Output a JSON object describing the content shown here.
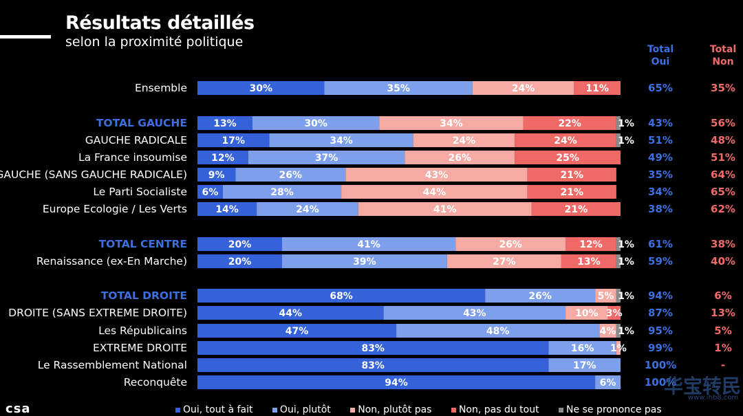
{
  "header": {
    "title": "Résultats détaillés",
    "subtitle": "selon la proximité politique",
    "col_oui": "Total\nOui",
    "col_non": "Total\nNon"
  },
  "colors": {
    "oui_tout_a_fait": "#3562d9",
    "oui_plutot": "#7ea0ec",
    "non_plutot_pas": "#f5aaa3",
    "non_pas_du_tout": "#ef6a67",
    "nsp": "#8a8a8a",
    "highlight_label": "#3d6fe0",
    "total_oui": "#3d6fe0",
    "total_non": "#f06a6a"
  },
  "chart_data": {
    "type": "bar",
    "orientation": "horizontal",
    "stacked": true,
    "title": "Résultats détaillés",
    "subtitle": "selon la proximité politique",
    "series_names": [
      "Oui, tout à fait",
      "Oui, plutôt",
      "Non, plutôt pas",
      "Non, pas du tout",
      "Ne se prononce pas"
    ],
    "rows": [
      {
        "label": "Ensemble",
        "highlight": false,
        "values": [
          30,
          35,
          24,
          11,
          0
        ],
        "labels": [
          "30%",
          "35%",
          "24%",
          "11%",
          ""
        ],
        "total_oui": "65%",
        "total_non": "35%"
      },
      {
        "label": "TOTAL GAUCHE",
        "highlight": true,
        "values": [
          13,
          30,
          34,
          22,
          1
        ],
        "labels": [
          "13%",
          "30%",
          "34%",
          "22%",
          "1%"
        ],
        "total_oui": "43%",
        "total_non": "56%"
      },
      {
        "label": "GAUCHE RADICALE",
        "highlight": false,
        "values": [
          17,
          34,
          24,
          24,
          1
        ],
        "labels": [
          "17%",
          "34%",
          "24%",
          "24%",
          "1%"
        ],
        "total_oui": "51%",
        "total_non": "48%"
      },
      {
        "label": "La France insoumise",
        "highlight": false,
        "values": [
          12,
          37,
          26,
          25,
          0
        ],
        "labels": [
          "12%",
          "37%",
          "26%",
          "25%",
          ""
        ],
        "total_oui": "49%",
        "total_non": "51%"
      },
      {
        "label": "GAUCHE (SANS GAUCHE RADICALE)",
        "highlight": false,
        "values": [
          9,
          26,
          43,
          21,
          0
        ],
        "labels": [
          "9%",
          "26%",
          "43%",
          "21%",
          ""
        ],
        "total_oui": "35%",
        "total_non": "64%"
      },
      {
        "label": "Le Parti Socialiste",
        "highlight": false,
        "values": [
          6,
          28,
          44,
          21,
          0
        ],
        "labels": [
          "6%",
          "28%",
          "44%",
          "21%",
          ""
        ],
        "total_oui": "34%",
        "total_non": "65%"
      },
      {
        "label": "Europe Ecologie / Les Verts",
        "highlight": false,
        "values": [
          14,
          24,
          41,
          21,
          0
        ],
        "labels": [
          "14%",
          "24%",
          "41%",
          "21%",
          ""
        ],
        "total_oui": "38%",
        "total_non": "62%"
      },
      {
        "label": "TOTAL CENTRE",
        "highlight": true,
        "values": [
          20,
          41,
          26,
          12,
          1
        ],
        "labels": [
          "20%",
          "41%",
          "26%",
          "12%",
          "1%"
        ],
        "total_oui": "61%",
        "total_non": "38%"
      },
      {
        "label": "Renaissance (ex-En Marche)",
        "highlight": false,
        "values": [
          20,
          39,
          27,
          13,
          1
        ],
        "labels": [
          "20%",
          "39%",
          "27%",
          "13%",
          "1%"
        ],
        "total_oui": "59%",
        "total_non": "40%"
      },
      {
        "label": "TOTAL DROITE",
        "highlight": true,
        "values": [
          68,
          26,
          5,
          0,
          1
        ],
        "labels": [
          "68%",
          "26%",
          "5%",
          "",
          "1%"
        ],
        "total_oui": "94%",
        "total_non": "6%"
      },
      {
        "label": "DROITE (SANS EXTREME DROITE)",
        "highlight": false,
        "values": [
          44,
          43,
          10,
          3,
          0
        ],
        "labels": [
          "44%",
          "43%",
          "10%",
          "3%",
          ""
        ],
        "total_oui": "87%",
        "total_non": "13%"
      },
      {
        "label": "Les Républicains",
        "highlight": false,
        "values": [
          47,
          48,
          4,
          0,
          1
        ],
        "labels": [
          "47%",
          "48%",
          "4%",
          "",
          "1%"
        ],
        "total_oui": "95%",
        "total_non": "5%"
      },
      {
        "label": "EXTREME DROITE",
        "highlight": false,
        "values": [
          83,
          16,
          1,
          0,
          0
        ],
        "labels": [
          "83%",
          "16%",
          "1%",
          "",
          ""
        ],
        "total_oui": "99%",
        "total_non": "1%"
      },
      {
        "label": "Le Rassemblement National",
        "highlight": false,
        "values": [
          83,
          17,
          0,
          0,
          0
        ],
        "labels": [
          "83%",
          "17%",
          "",
          "",
          ""
        ],
        "total_oui": "100%",
        "total_non": "-"
      },
      {
        "label": "Reconquête",
        "highlight": false,
        "values": [
          94,
          6,
          0,
          0,
          0
        ],
        "labels": [
          "94%",
          "6%",
          "",
          "",
          ""
        ],
        "total_oui": "100%",
        "total_non": ""
      }
    ],
    "legend_position": "bottom",
    "grid": false
  },
  "legend": [
    {
      "label": "Oui, tout à fait"
    },
    {
      "label": "Oui, plutôt"
    },
    {
      "label": "Non, plutôt pas"
    },
    {
      "label": "Non, pas du tout"
    },
    {
      "label": "Ne se prononce pas"
    }
  ],
  "branding": {
    "logo": "csa",
    "watermark": "华宝转民",
    "watermark_url": "www.ihb8.com"
  }
}
